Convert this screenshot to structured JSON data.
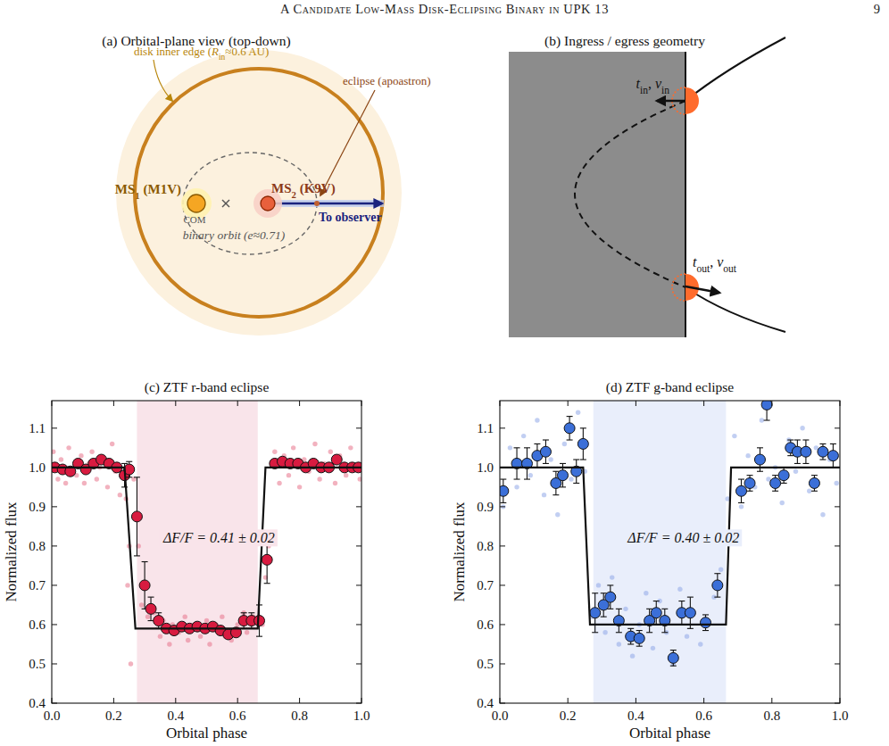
{
  "header": {
    "title": "A Candidate Low-Mass Disk-Eclipsing Binary in UPK 13",
    "page": "9"
  },
  "panel_a": {
    "title": "(a) Orbital-plane view (top-down)",
    "disk_label": [
      {
        "text": "disk inner edge ("
      },
      {
        "text": "R",
        "sub": "in"
      },
      {
        "text": "≈0.6 AU)"
      }
    ],
    "eclipse_label": "eclipse (apoastron)",
    "ms1_label": [
      {
        "text": "MS",
        "sub": "1"
      },
      {
        "text": " (M1V)"
      }
    ],
    "ms2_label": [
      {
        "text": "MS",
        "sub": "2"
      },
      {
        "text": " (K9V)"
      }
    ],
    "com_label": "COM",
    "orbit_label": "binary orbit (e≈0.71)",
    "observer_label": "To observer"
  },
  "panel_b": {
    "title": "(b) Ingress / egress geometry",
    "ingress_label": [
      {
        "text": "t",
        "sub": "in"
      },
      {
        "text": ",  "
      },
      {
        "text": "v",
        "sub": "in"
      }
    ],
    "egress_label": [
      {
        "text": "t",
        "sub": "out"
      },
      {
        "text": ",  "
      },
      {
        "text": "v",
        "sub": "out"
      }
    ]
  },
  "chart_data": [
    {
      "type": "scatter",
      "title": "(c) ZTF r-band eclipse",
      "x_label": "Orbital phase",
      "y_label": "Normalized flux",
      "xlim": [
        0,
        1
      ],
      "ylim": [
        0.4,
        1.17
      ],
      "xticks": [
        {
          "value": 0,
          "label": "0.0"
        },
        0.2,
        0.4,
        0.6,
        0.8,
        {
          "value": 1,
          "label": "1.0"
        }
      ],
      "yticks": [
        0.4,
        0.5,
        0.6,
        0.7,
        0.8,
        0.9,
        {
          "value": 1,
          "label": "1.0"
        },
        1.1
      ],
      "shaded_region": {
        "range": [
          0.275,
          0.665
        ],
        "color": "#f9e4ea"
      },
      "annotation": "ΔF/F = 0.41 ± 0.02",
      "series": [
        {
          "type": "scatter",
          "color": "#e8728a",
          "marker": "dot",
          "x": [
            0.005,
            0.02,
            0.03,
            0.045,
            0.055,
            0.07,
            0.08,
            0.095,
            0.105,
            0.12,
            0.13,
            0.145,
            0.155,
            0.17,
            0.18,
            0.195,
            0.205,
            0.22,
            0.24,
            0.245,
            0.25,
            0.255,
            0.265,
            0.28,
            0.29,
            0.31,
            0.33,
            0.35,
            0.36,
            0.38,
            0.39,
            0.41,
            0.43,
            0.44,
            0.46,
            0.48,
            0.5,
            0.51,
            0.53,
            0.55,
            0.56,
            0.58,
            0.6,
            0.62,
            0.63,
            0.65,
            0.68,
            0.69,
            0.7,
            0.72,
            0.735,
            0.75,
            0.765,
            0.78,
            0.8,
            0.815,
            0.83,
            0.85,
            0.865,
            0.88,
            0.9,
            0.915,
            0.93,
            0.95,
            0.965,
            0.98,
            0.995
          ],
          "values": [
            1.04,
            0.97,
            1.02,
            0.96,
            1.05,
            1.0,
            0.98,
            1.03,
            0.96,
            1.01,
            1.04,
            0.97,
            1.0,
            1.02,
            0.95,
            1.06,
            0.99,
            0.93,
            0.92,
            0.7,
            0.8,
            0.5,
            0.97,
            0.8,
            0.65,
            0.62,
            0.63,
            0.57,
            0.61,
            0.55,
            0.6,
            0.58,
            0.62,
            0.56,
            0.6,
            0.57,
            0.61,
            0.55,
            0.6,
            0.62,
            0.57,
            0.56,
            0.6,
            0.63,
            0.58,
            0.62,
            0.6,
            0.72,
            0.8,
            1.04,
            0.96,
            1.03,
            0.98,
            1.05,
            0.95,
            1.02,
            0.99,
            1.06,
            0.97,
            1.01,
            1.04,
            0.96,
            1.03,
            0.98,
            1.05,
            1.0,
            0.97
          ]
        },
        {
          "type": "scatter",
          "color": "#d81b40",
          "marker": "circle",
          "x": [
            0.01,
            0.035,
            0.06,
            0.085,
            0.11,
            0.135,
            0.16,
            0.185,
            0.21,
            0.235,
            0.25,
            0.275,
            0.3,
            0.32,
            0.345,
            0.37,
            0.395,
            0.42,
            0.445,
            0.47,
            0.495,
            0.52,
            0.545,
            0.57,
            0.595,
            0.62,
            0.645,
            0.67,
            0.695,
            0.72,
            0.745,
            0.77,
            0.795,
            0.82,
            0.845,
            0.87,
            0.895,
            0.92,
            0.945,
            0.97,
            0.99
          ],
          "values": [
            1.0,
            0.995,
            0.99,
            1.01,
            0.995,
            1.01,
            1.02,
            1.01,
            1.0,
            0.98,
            0.995,
            0.875,
            0.7,
            0.64,
            0.61,
            0.59,
            0.585,
            0.595,
            0.59,
            0.595,
            0.59,
            0.595,
            0.585,
            0.575,
            0.58,
            0.61,
            0.61,
            0.61,
            0.765,
            1.01,
            1.015,
            1.01,
            1.01,
            1.0,
            1.01,
            1.0,
            1.0,
            1.02,
            1.0,
            1.0,
            1.0
          ],
          "errors": [
            0.01,
            0.01,
            0.01,
            0.01,
            0.01,
            0.01,
            0.01,
            0.01,
            0.01,
            0.03,
            0.02,
            0.1,
            0.06,
            0.03,
            0.02,
            0.01,
            0.01,
            0.01,
            0.01,
            0.01,
            0.01,
            0.01,
            0.01,
            0.01,
            0.01,
            0.02,
            0.02,
            0.04,
            0.06,
            0.01,
            0.01,
            0.01,
            0.01,
            0.01,
            0.01,
            0.01,
            0.01,
            0.01,
            0.01,
            0.01,
            0.01
          ]
        },
        {
          "type": "line",
          "color": "#111111",
          "line_style": "solid",
          "x": [
            0,
            0.235,
            0.27,
            0.665,
            0.69,
            1
          ],
          "values": [
            1,
            1,
            0.59,
            0.59,
            1,
            1
          ]
        }
      ]
    },
    {
      "type": "scatter",
      "title": "(d) ZTF g-band eclipse",
      "x_label": "Orbital phase",
      "y_label": "Normalized flux",
      "xlim": [
        0,
        1
      ],
      "ylim": [
        0.4,
        1.17
      ],
      "xticks": [
        {
          "value": 0,
          "label": "0.0"
        },
        0.2,
        0.4,
        0.6,
        0.8,
        {
          "value": 1,
          "label": "1.0"
        }
      ],
      "yticks": [
        0.4,
        0.5,
        0.6,
        0.7,
        0.8,
        0.9,
        {
          "value": 1,
          "label": "1.0"
        },
        1.1
      ],
      "shaded_region": {
        "range": [
          0.275,
          0.665
        ],
        "color": "#e9eefb"
      },
      "annotation": "ΔF/F = 0.40 ± 0.02",
      "series": [
        {
          "type": "scatter",
          "color": "#8fa8e8",
          "marker": "dot",
          "x": [
            0.01,
            0.03,
            0.05,
            0.07,
            0.09,
            0.11,
            0.13,
            0.15,
            0.17,
            0.19,
            0.21,
            0.23,
            0.25,
            0.27,
            0.29,
            0.31,
            0.33,
            0.35,
            0.37,
            0.39,
            0.41,
            0.43,
            0.45,
            0.47,
            0.49,
            0.51,
            0.53,
            0.55,
            0.57,
            0.59,
            0.61,
            0.63,
            0.65,
            0.67,
            0.69,
            0.71,
            0.73,
            0.75,
            0.77,
            0.79,
            0.81,
            0.83,
            0.85,
            0.87,
            0.89,
            0.91,
            0.93,
            0.95,
            0.97,
            0.99
          ],
          "values": [
            0.9,
            1.05,
            0.95,
            1.08,
            0.98,
            1.12,
            0.93,
            1.02,
            0.88,
            1.06,
            0.97,
            1.14,
            0.99,
            0.62,
            0.7,
            0.58,
            0.72,
            0.55,
            0.64,
            0.52,
            0.6,
            0.68,
            0.54,
            0.66,
            0.58,
            0.5,
            0.69,
            0.57,
            0.63,
            0.55,
            0.61,
            0.67,
            0.74,
            0.92,
            1.08,
            0.9,
            1.03,
            0.95,
            1.12,
            0.97,
            1.0,
            0.91,
            1.07,
            0.99,
            1.1,
            0.94,
            1.05,
            0.88,
            1.02,
            0.96
          ]
        },
        {
          "type": "scatter",
          "color": "#3b6fd8",
          "marker": "circle",
          "x": [
            0.01,
            0.05,
            0.08,
            0.11,
            0.135,
            0.165,
            0.185,
            0.205,
            0.225,
            0.245,
            0.28,
            0.305,
            0.325,
            0.35,
            0.385,
            0.41,
            0.44,
            0.46,
            0.485,
            0.51,
            0.535,
            0.56,
            0.605,
            0.64,
            0.71,
            0.735,
            0.765,
            0.785,
            0.81,
            0.835,
            0.855,
            0.875,
            0.9,
            0.925,
            0.95,
            0.98
          ],
          "values": [
            0.94,
            1.01,
            1.01,
            1.03,
            1.04,
            0.96,
            0.98,
            1.1,
            0.99,
            1.06,
            0.63,
            0.65,
            0.67,
            0.61,
            0.57,
            0.565,
            0.61,
            0.63,
            0.61,
            0.515,
            0.63,
            0.63,
            0.605,
            0.7,
            0.94,
            0.96,
            1.02,
            1.16,
            0.96,
            0.98,
            1.05,
            1.04,
            1.04,
            0.96,
            1.04,
            1.03
          ],
          "errors": [
            0.03,
            0.04,
            0.04,
            0.03,
            0.03,
            0.03,
            0.03,
            0.03,
            0.03,
            0.04,
            0.05,
            0.03,
            0.03,
            0.03,
            0.02,
            0.02,
            0.03,
            0.03,
            0.03,
            0.02,
            0.03,
            0.04,
            0.02,
            0.03,
            0.03,
            0.02,
            0.03,
            0.04,
            0.02,
            0.02,
            0.02,
            0.03,
            0.03,
            0.02,
            0.02,
            0.03
          ]
        },
        {
          "type": "line",
          "color": "#111111",
          "line_style": "solid",
          "x": [
            0,
            0.245,
            0.265,
            0.665,
            0.68,
            1
          ],
          "values": [
            1,
            1,
            0.6,
            0.6,
            1,
            1
          ]
        }
      ]
    }
  ]
}
